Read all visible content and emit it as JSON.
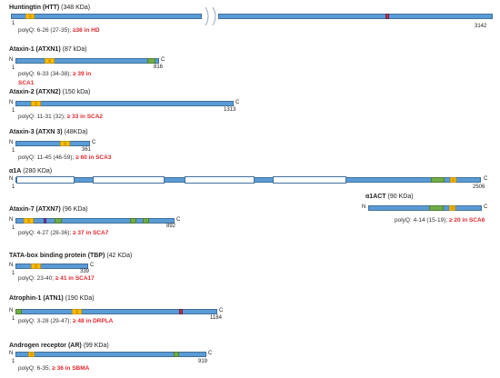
{
  "proteins": [
    {
      "title": "Huntingtin (HTT)",
      "mass": "(348 KDa)",
      "poly": "polyQ: 6-26 (27-35); ",
      "disease": "≥36 in HD",
      "n_label": "1",
      "c_label": "3142"
    },
    {
      "title": "Ataxin-1 (ATXN1)",
      "mass": "(87 kDa)",
      "poly": "polyQ: 6-33 (34-38); ",
      "disease": "≥ 39 in",
      "disease2": "SCA1",
      "n_label": "1",
      "c_label": "816"
    },
    {
      "title": "Ataxin-2 (ATXN2)",
      "mass": "(150 kDa)",
      "poly": "polyQ: 11-31 (32); ",
      "disease": "≥ 33 in SCA2",
      "n_label": "1",
      "c_label": "1313"
    },
    {
      "title": "Ataxin-3 (ATXN 3)",
      "mass": "(48KDa)",
      "poly": "polyQ: 11-45 (46-59); ",
      "disease": "≥ 60 in SCA3",
      "n_label": "1",
      "c_label": "361"
    },
    {
      "title": "α1A",
      "mass": "(280 KDa)",
      "n_label": "1",
      "c_label": "2506"
    },
    {
      "title": "α1ACT",
      "mass": "(90 KDa)",
      "poly": "polyQ: 4-14 (15-19); ",
      "disease": "≥ 20 in SCA6"
    },
    {
      "title": "Ataxin-7 (ATXN7)",
      "mass": "(96 KDa)",
      "poly": "polyQ: 4-27 (28-36); ",
      "disease": "≥ 37 in SCA7",
      "n_label": "1",
      "c_label": "892"
    },
    {
      "title": "TATA-box binding protein (TBP)",
      "mass": "(42 KDa)",
      "poly": "polyQ: 23-40; ",
      "disease": "≥ 41 in SCA17",
      "n_label": "1",
      "c_label": "339"
    },
    {
      "title": "Atrophin-1 (ATN1)",
      "mass": "(190 KDa)",
      "poly": "polyQ: 3-28 (29-47); ",
      "disease": "≥ 48 in DRPLA",
      "n_label": "1",
      "c_label": "1184"
    },
    {
      "title": "Androgen receptor (AR)",
      "mass": "(99 KDa)",
      "poly": "polyQ: 6-35; ",
      "disease": "≥ 36 in SBMA",
      "n_label": "1",
      "c_label": "919"
    }
  ],
  "labels": {
    "n_terminus": "N",
    "c_terminus": "C",
    "q_domain": "Q"
  },
  "colors": {
    "protein_bar": "#5b9bd5",
    "polyq_domain": "#ffc000",
    "other_domain": "#70ad47",
    "motif": "#a9365a",
    "expansion_text": "#e0282e"
  }
}
